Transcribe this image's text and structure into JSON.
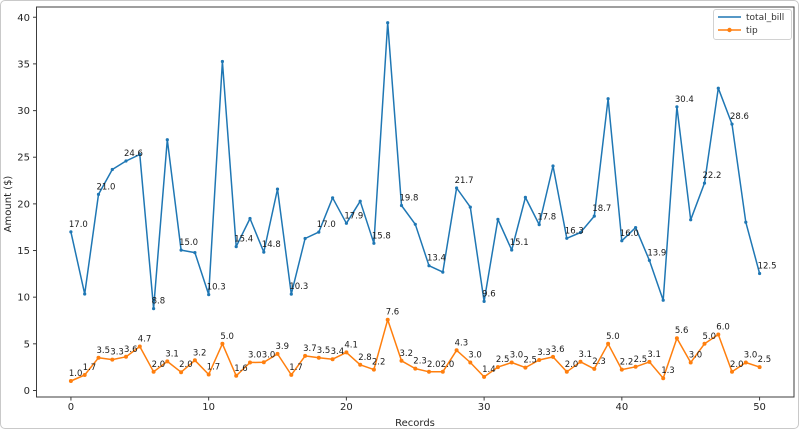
{
  "window": {
    "background": "#ffffff",
    "border_color": "#c9c9c9"
  },
  "chart_data": {
    "type": "line",
    "title": "",
    "xlabel": "Records",
    "ylabel": "Amount ($)",
    "grid": false,
    "legend_position": "upper right",
    "xticks": [
      0,
      10,
      20,
      30,
      40,
      50
    ],
    "yticks": [
      0,
      5,
      10,
      15,
      20,
      25,
      30,
      35,
      40
    ],
    "xlim": [
      -2.5,
      52.5
    ],
    "ylim": [
      -0.7,
      41.1
    ],
    "axis_color": "#3c3c3c",
    "tick_label_color": "#262626",
    "point_label_color": "#1a1a1a",
    "x": [
      0,
      1,
      2,
      3,
      4,
      5,
      6,
      7,
      8,
      9,
      10,
      11,
      12,
      13,
      14,
      15,
      16,
      17,
      18,
      19,
      20,
      21,
      22,
      23,
      24,
      25,
      26,
      27,
      28,
      29,
      30,
      31,
      32,
      33,
      34,
      35,
      36,
      37,
      38,
      39,
      40,
      41,
      42,
      43,
      44,
      45,
      46,
      47,
      48,
      49,
      50
    ],
    "series": [
      {
        "name": "total_bill",
        "color": "#1f77b4",
        "marker": "point",
        "values": [
          16.99,
          10.34,
          21.01,
          23.68,
          24.59,
          25.29,
          8.77,
          26.88,
          15.04,
          14.78,
          10.27,
          35.26,
          15.42,
          18.43,
          14.83,
          21.58,
          10.33,
          16.29,
          16.97,
          20.65,
          17.92,
          20.29,
          15.77,
          39.42,
          19.82,
          17.81,
          13.37,
          12.69,
          21.7,
          19.65,
          9.55,
          18.35,
          15.06,
          20.69,
          17.78,
          24.06,
          16.31,
          16.93,
          18.69,
          31.27,
          16.04,
          17.46,
          13.94,
          9.68,
          30.4,
          18.29,
          22.23,
          32.4,
          28.55,
          18.04,
          12.54
        ],
        "labels": [
          "17.0",
          null,
          "21.0",
          null,
          "24.6",
          null,
          "8.8",
          null,
          "15.0",
          null,
          "10.3",
          null,
          "15.4",
          null,
          "14.8",
          null,
          "10.3",
          null,
          "17.0",
          null,
          "17.9",
          null,
          "15.8",
          null,
          "19.8",
          null,
          "13.4",
          null,
          "21.7",
          null,
          "9.6",
          null,
          "15.1",
          null,
          "17.8",
          null,
          "16.3",
          null,
          "18.7",
          null,
          "16.0",
          null,
          "13.9",
          null,
          "30.4",
          null,
          "22.2",
          null,
          "28.6",
          null,
          "12.5"
        ]
      },
      {
        "name": "tip",
        "color": "#ff7f0e",
        "marker": "point",
        "values": [
          1.01,
          1.66,
          3.5,
          3.31,
          3.61,
          4.71,
          2.0,
          3.12,
          1.96,
          3.23,
          1.71,
          5.0,
          1.57,
          3.0,
          3.02,
          3.92,
          1.67,
          3.71,
          3.5,
          3.35,
          4.08,
          2.75,
          2.24,
          7.58,
          3.18,
          2.34,
          2.0,
          2.0,
          4.3,
          3.0,
          1.45,
          2.5,
          3.0,
          2.45,
          3.27,
          3.6,
          2.0,
          3.07,
          2.31,
          5.0,
          2.24,
          2.54,
          3.06,
          1.32,
          5.6,
          3.0,
          5.0,
          6.0,
          2.0,
          3.0,
          2.5
        ],
        "labels": [
          "1.0",
          "1.7",
          "3.5",
          "3.3",
          "3.6",
          "4.7",
          "2.0",
          "3.1",
          "2.0",
          "3.2",
          "1.7",
          "5.0",
          "1.6",
          "3.0",
          "3.0",
          "3.9",
          "1.7",
          "3.7",
          "3.5",
          "3.4",
          "4.1",
          "2.8",
          "2.2",
          "7.6",
          "3.2",
          "2.3",
          "2.0",
          "2.0",
          "4.3",
          "3.0",
          "1.4",
          "2.5",
          "3.0",
          "2.5",
          "3.3",
          "3.6",
          "2.0",
          "3.1",
          "2.3",
          "5.0",
          "2.2",
          "2.5",
          "3.1",
          "1.3",
          "5.6",
          "3.0",
          "5.0",
          "6.0",
          "2.0",
          "3.0",
          "2.5"
        ]
      }
    ]
  }
}
